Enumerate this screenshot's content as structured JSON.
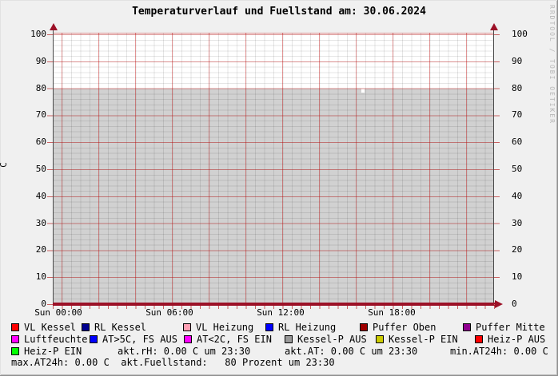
{
  "title": "Temperaturverlauf und Fuellstand am: 30.06.2024",
  "watermark": "RRDTOOL / TOBI OETIKER",
  "axes": {
    "y_unit_label": "C",
    "y_tick_labels": [
      "100",
      "90",
      "80",
      "70",
      "60",
      "50",
      "40",
      "30",
      "20",
      "10",
      "0"
    ],
    "x_tick_labels": [
      "Sun 00:00",
      "Sun 06:00",
      "Sun 12:00",
      "Sun 18:00"
    ]
  },
  "legend": {
    "rows": [
      {
        "items": [
          {
            "label": "VL Kessel",
            "color": "#ff0000"
          },
          {
            "label": "RL Kessel",
            "color": "#000090"
          },
          {
            "label": "VL Heizung",
            "color": "#ffa0b4"
          },
          {
            "label": "RL Heizung",
            "color": "#0000ff"
          },
          {
            "label": "Puffer Oben",
            "color": "#a00000"
          },
          {
            "label": "Puffer Mitte",
            "color": "#900090"
          }
        ]
      },
      {
        "items": [
          {
            "label": "Luftfeuchte",
            "color": "#ff00ff"
          },
          {
            "label": "AT>5C, FS AUS",
            "color": "#0000ff"
          },
          {
            "label": "AT<2C, FS EIN",
            "color": "#ff00ff"
          },
          {
            "label": "Kessel-P AUS",
            "color": "#999999"
          },
          {
            "label": "Kessel-P EIN",
            "color": "#cccc00"
          },
          {
            "label": "Heiz-P AUS",
            "color": "#ff0000"
          }
        ]
      }
    ],
    "row3": {
      "item": {
        "label": "Heiz-P EIN",
        "color": "#00ff00"
      },
      "stats": [
        "akt.rH: 0.00 C um 23:30",
        "akt.AT: 0.00 C um 23:30",
        "min.AT24h: 0.00 C"
      ]
    },
    "row4": "max.AT24h: 0.00 C  akt.Fuellstand:   80 Prozent um 23:30"
  },
  "chart_data": {
    "type": "area",
    "title": "Temperaturverlauf und Fuellstand am: 30.06.2024",
    "xlabel": "",
    "ylabel": "C",
    "ylim": [
      0,
      100
    ],
    "y_ticks": [
      0,
      10,
      20,
      30,
      40,
      50,
      60,
      70,
      80,
      90,
      100
    ],
    "x_ticks": [
      "Sun 00:00",
      "Sun 06:00",
      "Sun 12:00",
      "Sun 18:00"
    ],
    "x_range_hours": 24,
    "grid": "red major (10 C / 2 h), gray minor (2 C / 30 min)",
    "legend_position": "bottom",
    "series": [
      {
        "name": "Fuellstand",
        "type": "area",
        "color": "#d1d1d1",
        "values_percent": [
          80,
          80
        ],
        "note": "constant 80% for entire day"
      },
      {
        "name": "VL Kessel",
        "type": "line",
        "color": "#ff0000",
        "values": [
          0,
          0
        ]
      },
      {
        "name": "RL Kessel",
        "type": "line",
        "color": "#000090",
        "values": [
          0,
          0
        ]
      },
      {
        "name": "VL Heizung",
        "type": "line",
        "color": "#ffa0b4",
        "values": [
          0,
          0
        ]
      },
      {
        "name": "RL Heizung",
        "type": "line",
        "color": "#0000ff",
        "values": [
          0,
          0
        ]
      },
      {
        "name": "Puffer Oben",
        "type": "line",
        "color": "#a00000",
        "values": [
          0,
          0
        ]
      },
      {
        "name": "Puffer Mitte",
        "type": "line",
        "color": "#900090",
        "values": [
          0,
          0
        ]
      },
      {
        "name": "Luftfeuchte",
        "type": "line",
        "color": "#ff00ff",
        "values": [
          0,
          0
        ]
      },
      {
        "name": "AT>5C, FS AUS",
        "type": "tick",
        "color": "#0000ff",
        "values": [
          0,
          0
        ]
      },
      {
        "name": "AT<2C, FS EIN",
        "type": "tick",
        "color": "#ff00ff",
        "values": [
          0,
          0
        ]
      },
      {
        "name": "Kessel-P AUS",
        "type": "tick",
        "color": "#999999",
        "values": [
          0,
          0
        ]
      },
      {
        "name": "Kessel-P EIN",
        "type": "tick",
        "color": "#cccc00",
        "values": [
          0,
          0
        ]
      },
      {
        "name": "Heiz-P AUS",
        "type": "tick",
        "color": "#ff0000",
        "values": [
          0,
          0
        ]
      },
      {
        "name": "Heiz-P EIN",
        "type": "tick",
        "color": "#00ff00",
        "values": [
          0,
          0
        ]
      }
    ],
    "stats": {
      "akt_rH": "0.00 C um 23:30",
      "akt_AT": "0.00 C um 23:30",
      "min_AT24h": "0.00 C",
      "max_AT24h": "0.00 C",
      "akt_Fuellstand": "80 Prozent um 23:30"
    }
  }
}
